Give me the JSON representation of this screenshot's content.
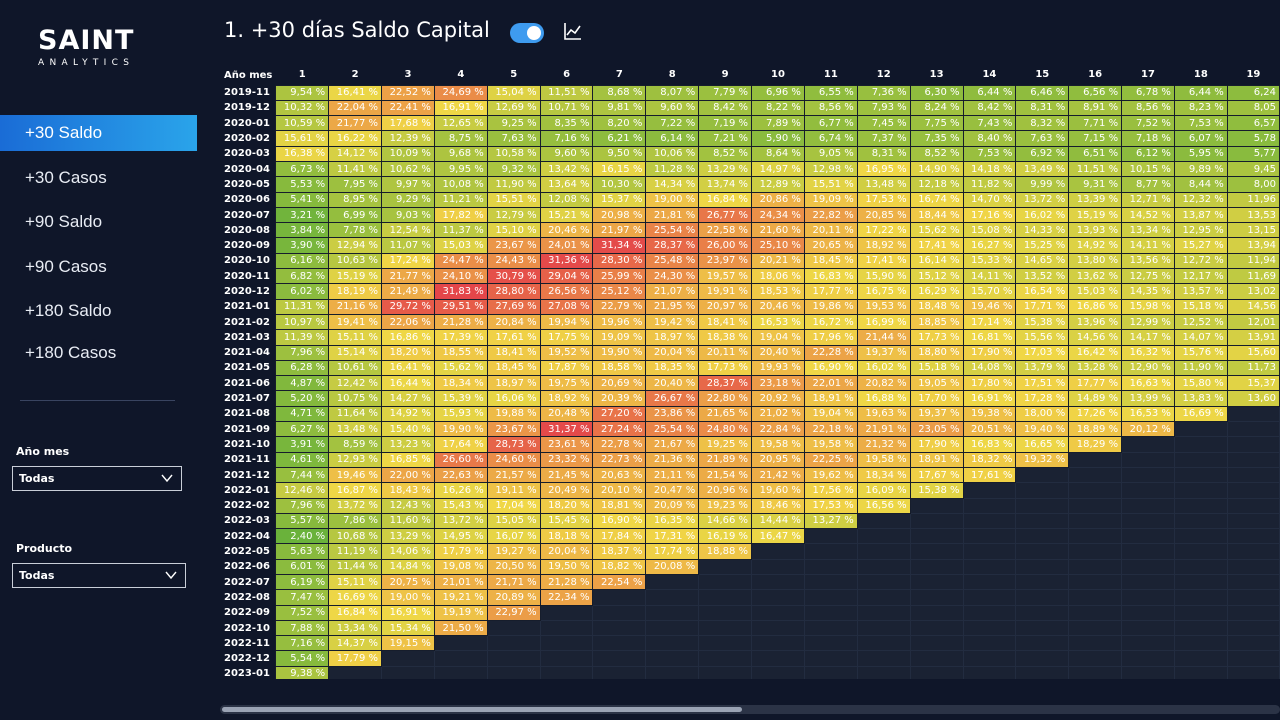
{
  "logo": {
    "main": "SAINT",
    "sub": "ANALYTICS"
  },
  "nav": [
    {
      "label": "+30 Saldo",
      "active": true
    },
    {
      "label": "+30 Casos",
      "active": false
    },
    {
      "label": "+90 Saldo",
      "active": false
    },
    {
      "label": "+90 Casos",
      "active": false
    },
    {
      "label": "+180 Saldo",
      "active": false
    },
    {
      "label": "+180 Casos",
      "active": false
    }
  ],
  "filters": {
    "anio_mes": {
      "label": "Año mes",
      "value": "Todas"
    },
    "producto": {
      "label": "Producto",
      "value": "Todas"
    }
  },
  "header": {
    "title": "1. +30 días Saldo Capital",
    "toggle_on": true,
    "icon": "line-chart-icon"
  },
  "colors": {
    "low": "#6ab23b",
    "mid": "#f0d746",
    "high": "#e4464a",
    "accent": "#2aa4ea"
  },
  "table": {
    "corner": "Año mes",
    "columns": [
      "1",
      "2",
      "3",
      "4",
      "5",
      "6",
      "7",
      "8",
      "9",
      "10",
      "11",
      "12",
      "13",
      "14",
      "15",
      "16",
      "17",
      "18",
      "19"
    ],
    "rows": [
      {
        "label": "2019-11",
        "values": [
          "9,54 %",
          "16,41 %",
          "22,52 %",
          "24,69 %",
          "15,04 %",
          "11,51 %",
          "8,68 %",
          "8,07 %",
          "7,79 %",
          "6,96 %",
          "6,55 %",
          "7,36 %",
          "6,30 %",
          "6,44 %",
          "6,46 %",
          "6,56 %",
          "6,78 %",
          "6,44 %",
          "6,24"
        ]
      },
      {
        "label": "2019-12",
        "values": [
          "10,32 %",
          "22,04 %",
          "22,41 %",
          "16,91 %",
          "12,69 %",
          "10,71 %",
          "9,81 %",
          "9,60 %",
          "8,42 %",
          "8,22 %",
          "8,56 %",
          "7,93 %",
          "8,24 %",
          "8,42 %",
          "8,31 %",
          "8,91 %",
          "8,56 %",
          "8,23 %",
          "8,05"
        ]
      },
      {
        "label": "2020-01",
        "values": [
          "10,59 %",
          "21,77 %",
          "17,68 %",
          "12,65 %",
          "9,25 %",
          "8,35 %",
          "8,20 %",
          "7,22 %",
          "7,19 %",
          "7,89 %",
          "6,77 %",
          "7,45 %",
          "7,75 %",
          "7,43 %",
          "8,32 %",
          "7,71 %",
          "7,52 %",
          "7,53 %",
          "6,57"
        ]
      },
      {
        "label": "2020-02",
        "values": [
          "15,61 %",
          "16,22 %",
          "12,39 %",
          "8,75 %",
          "7,63 %",
          "7,16 %",
          "6,21 %",
          "6,14 %",
          "7,21 %",
          "5,90 %",
          "6,74 %",
          "7,37 %",
          "7,35 %",
          "8,40 %",
          "7,63 %",
          "7,15 %",
          "7,18 %",
          "6,07 %",
          "5,78"
        ]
      },
      {
        "label": "2020-03",
        "values": [
          "16,38 %",
          "14,12 %",
          "10,09 %",
          "9,68 %",
          "10,58 %",
          "9,60 %",
          "9,50 %",
          "10,06 %",
          "8,52 %",
          "8,64 %",
          "9,05 %",
          "8,31 %",
          "8,52 %",
          "7,53 %",
          "6,92 %",
          "6,51 %",
          "6,12 %",
          "5,95 %",
          "5,77"
        ]
      },
      {
        "label": "2020-04",
        "values": [
          "6,73 %",
          "11,41 %",
          "10,62 %",
          "9,95 %",
          "9,32 %",
          "13,42 %",
          "16,15 %",
          "11,28 %",
          "13,29 %",
          "14,97 %",
          "12,98 %",
          "16,95 %",
          "14,90 %",
          "14,18 %",
          "13,49 %",
          "11,51 %",
          "10,15 %",
          "9,89 %",
          "9,45"
        ]
      },
      {
        "label": "2020-05",
        "values": [
          "5,53 %",
          "7,95 %",
          "9,97 %",
          "10,08 %",
          "11,90 %",
          "13,64 %",
          "10,30 %",
          "14,34 %",
          "13,74 %",
          "12,89 %",
          "15,51 %",
          "13,48 %",
          "12,18 %",
          "11,82 %",
          "9,99 %",
          "9,31 %",
          "8,77 %",
          "8,44 %",
          "8,00"
        ]
      },
      {
        "label": "2020-06",
        "values": [
          "5,41 %",
          "8,95 %",
          "9,29 %",
          "11,21 %",
          "15,51 %",
          "12,08 %",
          "15,37 %",
          "19,00 %",
          "16,84 %",
          "20,86 %",
          "19,09 %",
          "17,53 %",
          "16,74 %",
          "14,70 %",
          "13,72 %",
          "13,39 %",
          "12,71 %",
          "12,32 %",
          "11,96"
        ]
      },
      {
        "label": "2020-07",
        "values": [
          "3,21 %",
          "6,99 %",
          "9,03 %",
          "17,82 %",
          "12,79 %",
          "15,21 %",
          "20,98 %",
          "21,81 %",
          "26,77 %",
          "24,34 %",
          "22,82 %",
          "20,85 %",
          "18,44 %",
          "17,16 %",
          "16,02 %",
          "15,19 %",
          "14,52 %",
          "13,87 %",
          "13,53"
        ]
      },
      {
        "label": "2020-08",
        "values": [
          "3,84 %",
          "7,78 %",
          "12,54 %",
          "11,37 %",
          "15,10 %",
          "20,46 %",
          "21,97 %",
          "25,54 %",
          "22,58 %",
          "21,60 %",
          "20,11 %",
          "17,22 %",
          "15,62 %",
          "15,08 %",
          "14,33 %",
          "13,93 %",
          "13,34 %",
          "12,95 %",
          "13,15"
        ]
      },
      {
        "label": "2020-09",
        "values": [
          "3,90 %",
          "12,94 %",
          "11,07 %",
          "15,03 %",
          "23,67 %",
          "24,01 %",
          "31,34 %",
          "28,37 %",
          "26,00 %",
          "25,10 %",
          "20,65 %",
          "18,92 %",
          "17,41 %",
          "16,27 %",
          "15,25 %",
          "14,92 %",
          "14,11 %",
          "15,27 %",
          "13,94"
        ]
      },
      {
        "label": "2020-10",
        "values": [
          "6,16 %",
          "10,63 %",
          "17,24 %",
          "24,47 %",
          "24,43 %",
          "31,36 %",
          "28,30 %",
          "25,48 %",
          "23,97 %",
          "20,21 %",
          "18,45 %",
          "17,41 %",
          "16,14 %",
          "15,33 %",
          "14,65 %",
          "13,80 %",
          "13,56 %",
          "12,72 %",
          "11,94"
        ]
      },
      {
        "label": "2020-11",
        "values": [
          "6,82 %",
          "15,19 %",
          "21,77 %",
          "24,10 %",
          "30,79 %",
          "29,04 %",
          "25,99 %",
          "24,30 %",
          "19,57 %",
          "18,06 %",
          "16,83 %",
          "15,90 %",
          "15,12 %",
          "14,11 %",
          "13,52 %",
          "13,62 %",
          "12,75 %",
          "12,17 %",
          "11,69"
        ]
      },
      {
        "label": "2020-12",
        "values": [
          "6,02 %",
          "18,19 %",
          "21,49 %",
          "31,83 %",
          "28,80 %",
          "26,56 %",
          "25,12 %",
          "21,07 %",
          "19,91 %",
          "18,53 %",
          "17,77 %",
          "16,75 %",
          "16,29 %",
          "15,70 %",
          "16,54 %",
          "15,03 %",
          "14,35 %",
          "13,57 %",
          "13,02"
        ]
      },
      {
        "label": "2021-01",
        "values": [
          "11,31 %",
          "21,16 %",
          "29,72 %",
          "29,51 %",
          "27,69 %",
          "27,08 %",
          "22,79 %",
          "21,95 %",
          "20,97 %",
          "20,46 %",
          "19,86 %",
          "19,53 %",
          "18,48 %",
          "19,46 %",
          "17,71 %",
          "16,86 %",
          "15,98 %",
          "15,18 %",
          "14,56"
        ]
      },
      {
        "label": "2021-02",
        "values": [
          "10,97 %",
          "19,41 %",
          "22,06 %",
          "21,28 %",
          "20,84 %",
          "19,94 %",
          "19,96 %",
          "19,42 %",
          "18,41 %",
          "16,53 %",
          "16,72 %",
          "16,99 %",
          "18,85 %",
          "17,14 %",
          "15,38 %",
          "13,96 %",
          "12,99 %",
          "12,52 %",
          "12,01"
        ]
      },
      {
        "label": "2021-03",
        "values": [
          "11,39 %",
          "15,11 %",
          "16,86 %",
          "17,39 %",
          "17,61 %",
          "17,75 %",
          "19,09 %",
          "18,97 %",
          "18,38 %",
          "19,04 %",
          "17,96 %",
          "21,44 %",
          "17,73 %",
          "16,81 %",
          "15,56 %",
          "14,56 %",
          "14,17 %",
          "14,07 %",
          "13,91"
        ]
      },
      {
        "label": "2021-04",
        "values": [
          "7,96 %",
          "15,14 %",
          "18,20 %",
          "18,55 %",
          "18,41 %",
          "19,52 %",
          "19,90 %",
          "20,04 %",
          "20,11 %",
          "20,40 %",
          "22,28 %",
          "19,37 %",
          "18,80 %",
          "17,90 %",
          "17,03 %",
          "16,42 %",
          "16,32 %",
          "15,76 %",
          "15,60"
        ]
      },
      {
        "label": "2021-05",
        "values": [
          "6,28 %",
          "10,61 %",
          "16,41 %",
          "15,62 %",
          "18,45 %",
          "17,87 %",
          "18,58 %",
          "18,35 %",
          "17,73 %",
          "19,93 %",
          "16,90 %",
          "16,02 %",
          "15,18 %",
          "14,08 %",
          "13,79 %",
          "13,28 %",
          "12,90 %",
          "11,90 %",
          "11,73"
        ]
      },
      {
        "label": "2021-06",
        "values": [
          "4,87 %",
          "12,42 %",
          "16,44 %",
          "18,34 %",
          "18,97 %",
          "19,75 %",
          "20,69 %",
          "20,40 %",
          "28,37 %",
          "23,18 %",
          "22,01 %",
          "20,82 %",
          "19,05 %",
          "17,80 %",
          "17,51 %",
          "17,77 %",
          "16,63 %",
          "15,80 %",
          "15,37"
        ]
      },
      {
        "label": "2021-07",
        "values": [
          "5,20 %",
          "10,75 %",
          "14,27 %",
          "15,39 %",
          "16,06 %",
          "18,92 %",
          "20,39 %",
          "26,67 %",
          "22,80 %",
          "20,92 %",
          "18,91 %",
          "16,88 %",
          "17,70 %",
          "16,91 %",
          "17,28 %",
          "14,89 %",
          "13,99 %",
          "13,83 %",
          "13,60"
        ]
      },
      {
        "label": "2021-08",
        "values": [
          "4,71 %",
          "11,64 %",
          "14,92 %",
          "15,93 %",
          "19,88 %",
          "20,48 %",
          "27,20 %",
          "23,86 %",
          "21,65 %",
          "21,02 %",
          "19,04 %",
          "19,63 %",
          "19,37 %",
          "19,38 %",
          "18,00 %",
          "17,26 %",
          "16,53 %",
          "16,69 %",
          ""
        ]
      },
      {
        "label": "2021-09",
        "values": [
          "6,27 %",
          "13,48 %",
          "15,40 %",
          "19,90 %",
          "23,67 %",
          "31,37 %",
          "27,24 %",
          "25,54 %",
          "24,80 %",
          "22,84 %",
          "22,18 %",
          "21,91 %",
          "23,05 %",
          "20,51 %",
          "19,40 %",
          "18,89 %",
          "20,12 %",
          "",
          ""
        ]
      },
      {
        "label": "2021-10",
        "values": [
          "3,91 %",
          "8,59 %",
          "13,23 %",
          "17,64 %",
          "28,73 %",
          "23,61 %",
          "22,78 %",
          "21,67 %",
          "19,25 %",
          "19,58 %",
          "19,58 %",
          "21,32 %",
          "17,90 %",
          "16,83 %",
          "16,65 %",
          "18,29 %",
          "",
          "",
          ""
        ]
      },
      {
        "label": "2021-11",
        "values": [
          "4,61 %",
          "12,93 %",
          "16,85 %",
          "26,60 %",
          "24,60 %",
          "23,32 %",
          "22,73 %",
          "21,36 %",
          "21,89 %",
          "20,95 %",
          "22,25 %",
          "19,58 %",
          "18,91 %",
          "18,32 %",
          "19,32 %",
          "",
          "",
          "",
          ""
        ]
      },
      {
        "label": "2021-12",
        "values": [
          "7,44 %",
          "19,46 %",
          "22,00 %",
          "22,63 %",
          "21,57 %",
          "21,45 %",
          "20,63 %",
          "21,11 %",
          "21,54 %",
          "21,42 %",
          "19,62 %",
          "18,34 %",
          "17,67 %",
          "17,61 %",
          "",
          "",
          "",
          "",
          ""
        ]
      },
      {
        "label": "2022-01",
        "values": [
          "12,46 %",
          "16,87 %",
          "18,43 %",
          "16,26 %",
          "19,11 %",
          "20,49 %",
          "20,10 %",
          "20,47 %",
          "20,96 %",
          "19,60 %",
          "17,56 %",
          "16,09 %",
          "15,38 %",
          "",
          "",
          "",
          "",
          "",
          ""
        ]
      },
      {
        "label": "2022-02",
        "values": [
          "7,96 %",
          "13,72 %",
          "12,43 %",
          "15,43 %",
          "17,04 %",
          "18,20 %",
          "18,81 %",
          "20,09 %",
          "19,23 %",
          "18,46 %",
          "17,53 %",
          "16,56 %",
          "",
          "",
          "",
          "",
          "",
          "",
          ""
        ]
      },
      {
        "label": "2022-03",
        "values": [
          "5,57 %",
          "7,86 %",
          "11,60 %",
          "13,72 %",
          "15,05 %",
          "15,45 %",
          "16,90 %",
          "16,35 %",
          "14,66 %",
          "14,44 %",
          "13,27 %",
          "",
          "",
          "",
          "",
          "",
          "",
          "",
          ""
        ]
      },
      {
        "label": "2022-04",
        "values": [
          "2,40 %",
          "10,68 %",
          "13,29 %",
          "14,95 %",
          "16,07 %",
          "18,18 %",
          "17,84 %",
          "17,31 %",
          "16,19 %",
          "16,47 %",
          "",
          "",
          "",
          "",
          "",
          "",
          "",
          "",
          ""
        ]
      },
      {
        "label": "2022-05",
        "values": [
          "5,63 %",
          "11,19 %",
          "14,06 %",
          "17,79 %",
          "19,27 %",
          "20,04 %",
          "18,37 %",
          "17,74 %",
          "18,88 %",
          "",
          "",
          "",
          "",
          "",
          "",
          "",
          "",
          "",
          ""
        ]
      },
      {
        "label": "2022-06",
        "values": [
          "6,01 %",
          "11,44 %",
          "14,84 %",
          "19,08 %",
          "20,50 %",
          "19,50 %",
          "18,82 %",
          "20,08 %",
          "",
          "",
          "",
          "",
          "",
          "",
          "",
          "",
          "",
          "",
          ""
        ]
      },
      {
        "label": "2022-07",
        "values": [
          "6,19 %",
          "15,11 %",
          "20,75 %",
          "21,01 %",
          "21,71 %",
          "21,28 %",
          "22,54 %",
          "",
          "",
          "",
          "",
          "",
          "",
          "",
          "",
          "",
          "",
          "",
          ""
        ]
      },
      {
        "label": "2022-08",
        "values": [
          "7,47 %",
          "16,69 %",
          "19,00 %",
          "19,21 %",
          "20,89 %",
          "22,34 %",
          "",
          "",
          "",
          "",
          "",
          "",
          "",
          "",
          "",
          "",
          "",
          "",
          ""
        ]
      },
      {
        "label": "2022-09",
        "values": [
          "7,52 %",
          "16,84 %",
          "16,91 %",
          "19,19 %",
          "22,97 %",
          "",
          "",
          "",
          "",
          "",
          "",
          "",
          "",
          "",
          "",
          "",
          "",
          "",
          ""
        ]
      },
      {
        "label": "2022-10",
        "values": [
          "7,88 %",
          "13,34 %",
          "15,34 %",
          "21,50 %",
          "",
          "",
          "",
          "",
          "",
          "",
          "",
          "",
          "",
          "",
          "",
          "",
          "",
          "",
          ""
        ]
      },
      {
        "label": "2022-11",
        "values": [
          "7,16 %",
          "14,37 %",
          "19,15 %",
          "",
          "",
          "",
          "",
          "",
          "",
          "",
          "",
          "",
          "",
          "",
          "",
          "",
          "",
          "",
          ""
        ]
      },
      {
        "label": "2022-12",
        "values": [
          "5,54 %",
          "17,79 %",
          "",
          "",
          "",
          "",
          "",
          "",
          "",
          "",
          "",
          "",
          "",
          "",
          "",
          "",
          "",
          "",
          ""
        ]
      },
      {
        "label": "2023-01",
        "values": [
          "9,38 %",
          "",
          "",
          "",
          "",
          "",
          "",
          "",
          "",
          "",
          "",
          "",
          "",
          "",
          "",
          "",
          "",
          "",
          ""
        ]
      }
    ]
  }
}
